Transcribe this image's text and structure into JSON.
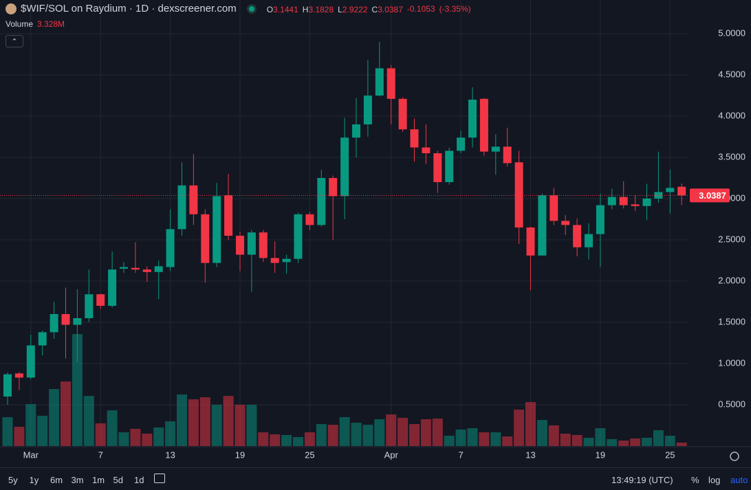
{
  "chart_data": {
    "type": "candlestick",
    "title": "$WIF/SOL on Raydium · 1D · dexscreener.com",
    "ohlc_labels": [
      "O",
      "H",
      "L",
      "C"
    ],
    "change": -0.1053,
    "change_label": "(-3.35%)",
    "volume_title": "Volume",
    "volume_last_label": "3.328M",
    "categories": [
      null,
      null,
      "Mar",
      null,
      null,
      null,
      null,
      null,
      "7",
      null,
      null,
      null,
      null,
      null,
      "13",
      null,
      null,
      null,
      null,
      null,
      "19",
      null,
      null,
      null,
      null,
      null,
      "25",
      null,
      null,
      null,
      null,
      null,
      null,
      "Apr",
      null,
      null,
      null,
      null,
      null,
      "7",
      null,
      null,
      null,
      null,
      null,
      "13",
      null,
      null,
      null,
      null,
      null,
      "19",
      null,
      null,
      null,
      null,
      null,
      "25",
      null
    ],
    "open": [
      0.6,
      0.88,
      0.83,
      1.22,
      1.38,
      1.6,
      1.47,
      1.55,
      1.84,
      1.7,
      2.15,
      2.16,
      2.14,
      2.11,
      2.17,
      2.63,
      3.16,
      2.81,
      2.22,
      3.04,
      2.55,
      2.32,
      2.59,
      2.28,
      2.23,
      2.27,
      2.81,
      2.68,
      3.25,
      3.03,
      3.74,
      3.9,
      4.25,
      4.58,
      4.21,
      3.84,
      3.62,
      3.55,
      3.2,
      3.58,
      3.74,
      4.21,
      3.57,
      3.63,
      3.44,
      2.65,
      2.31,
      3.04,
      2.73,
      2.68,
      2.41,
      2.57,
      2.92,
      3.02,
      2.93,
      2.91,
      3.0,
      3.08,
      3.1441
    ],
    "high": [
      0.89,
      0.9,
      1.35,
      1.4,
      1.75,
      1.92,
      1.9,
      2.14,
      1.85,
      2.36,
      2.23,
      2.47,
      2.18,
      2.25,
      2.87,
      3.44,
      3.54,
      2.87,
      3.19,
      3.3,
      2.6,
      2.62,
      2.62,
      2.48,
      2.32,
      2.83,
      2.84,
      3.35,
      3.28,
      3.98,
      4.22,
      4.68,
      4.9,
      4.62,
      4.23,
      3.97,
      3.9,
      3.58,
      3.62,
      3.82,
      4.35,
      4.22,
      3.78,
      3.86,
      3.58,
      2.66,
      3.06,
      3.13,
      2.8,
      2.76,
      2.7,
      3.06,
      3.12,
      3.21,
      3.04,
      3.18,
      3.57,
      3.35,
      3.1828
    ],
    "low": [
      0.5,
      0.68,
      0.81,
      1.1,
      1.3,
      1.06,
      1.02,
      1.5,
      1.66,
      1.68,
      2.1,
      2.1,
      1.99,
      1.78,
      2.12,
      2.55,
      2.68,
      1.98,
      2.17,
      2.5,
      2.12,
      1.87,
      2.23,
      2.1,
      2.09,
      2.22,
      2.62,
      2.66,
      2.5,
      2.75,
      3.5,
      3.75,
      4.24,
      3.9,
      3.81,
      3.45,
      3.42,
      3.07,
      3.17,
      3.55,
      3.62,
      3.52,
      3.29,
      3.39,
      2.45,
      1.89,
      2.31,
      2.68,
      2.56,
      2.3,
      2.26,
      2.17,
      2.87,
      2.88,
      2.85,
      2.74,
      2.95,
      2.82,
      2.9222
    ],
    "close": [
      0.87,
      0.83,
      1.22,
      1.38,
      1.6,
      1.47,
      1.55,
      1.84,
      1.7,
      2.14,
      2.17,
      2.14,
      2.11,
      2.18,
      2.63,
      3.16,
      2.81,
      2.22,
      3.03,
      2.55,
      2.32,
      2.59,
      2.28,
      2.22,
      2.27,
      2.81,
      2.68,
      3.25,
      3.03,
      3.74,
      3.9,
      4.25,
      4.58,
      4.21,
      3.84,
      3.62,
      3.55,
      3.2,
      3.58,
      3.74,
      4.2,
      3.57,
      3.63,
      3.43,
      2.65,
      2.31,
      3.04,
      2.73,
      2.68,
      2.41,
      2.57,
      2.92,
      3.02,
      2.92,
      2.91,
      3.0,
      3.08,
      3.13,
      3.0387
    ],
    "volume": [
      28,
      18.6,
      40.6,
      29.3,
      55.3,
      62.6,
      108.6,
      48.6,
      22,
      34.6,
      13.3,
      16.7,
      12,
      18,
      24,
      50,
      45.3,
      47.3,
      40,
      48.6,
      40,
      40,
      13.3,
      11.3,
      10.7,
      8.7,
      13.3,
      21.3,
      20.6,
      28,
      22.6,
      20.6,
      26,
      30.6,
      27.3,
      21.3,
      26,
      26.6,
      10,
      16,
      17.3,
      13.3,
      13.3,
      9.3,
      35.3,
      42.6,
      25.3,
      20,
      12,
      10.7,
      8,
      17.3,
      6.7,
      5.3,
      7.3,
      8,
      15.3,
      10,
      3.328
    ],
    "ylim": [
      0,
      5.4
    ],
    "yticks": [
      {
        "value": 0.5,
        "label": "0.5000"
      },
      {
        "value": 1,
        "label": "1.0000"
      },
      {
        "value": 1.5,
        "label": "1.5000"
      },
      {
        "value": 2,
        "label": "2.0000"
      },
      {
        "value": 2.5,
        "label": "2.5000"
      },
      {
        "value": 3,
        "label": "3.0000"
      },
      {
        "value": 3.5,
        "label": "3.5000"
      },
      {
        "value": 4,
        "label": "4.0000"
      },
      {
        "value": 4.5,
        "label": "4.5000"
      },
      {
        "value": 5,
        "label": "5.0000"
      }
    ],
    "volume_ylim": [
      0,
      250
    ],
    "grid": true,
    "up_color": "#089981",
    "down_color": "#f23645"
  },
  "toolbar": {
    "ranges": [
      "5y",
      "1y",
      "6m",
      "3m",
      "1m",
      "5d",
      "1d"
    ],
    "time": "13:49:19 (UTC)",
    "options": [
      "%",
      "log",
      "auto"
    ]
  }
}
